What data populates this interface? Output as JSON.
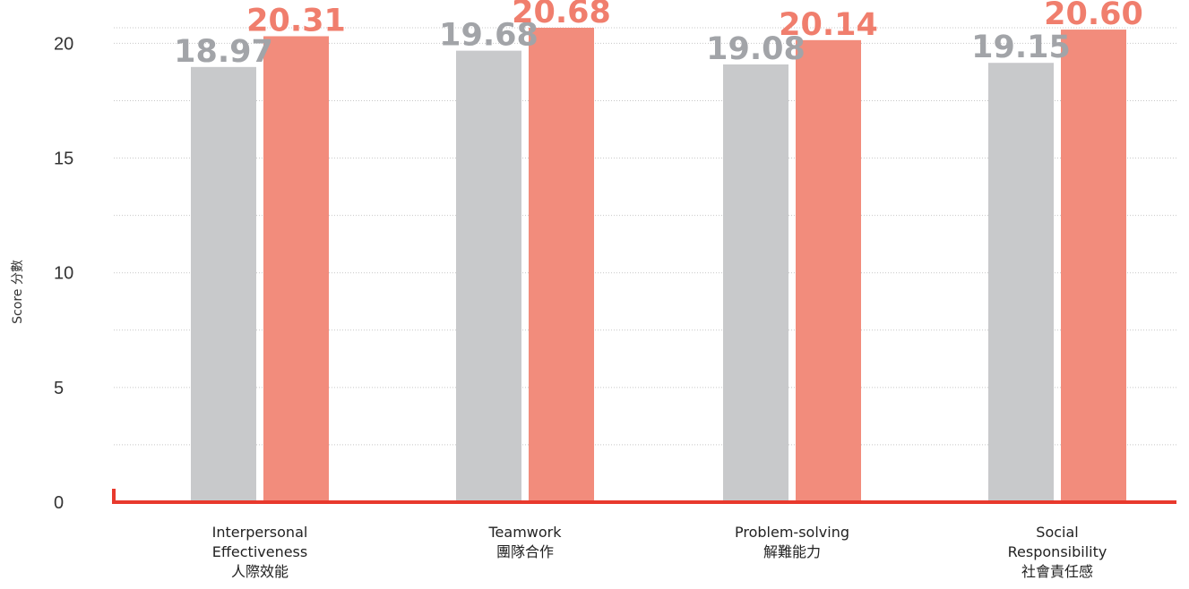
{
  "chart_data": {
    "type": "bar",
    "ylabel": "Score 分數",
    "ylim": [
      0,
      20.68
    ],
    "yticks": [
      0,
      5,
      10,
      15,
      20
    ],
    "grid": true,
    "categories": [
      [
        "Interpersonal",
        "Effectiveness",
        "人際效能"
      ],
      [
        "Teamwork",
        "團隊合作"
      ],
      [
        "Problem-solving",
        "解難能力"
      ],
      [
        "Social",
        "Responsibility",
        "社會責任感"
      ]
    ],
    "series": [
      {
        "values": [
          18.97,
          19.68,
          19.08,
          19.15
        ],
        "labels": [
          "18.97",
          "19.68",
          "19.08",
          "19.15"
        ],
        "color": "#c8c9cb",
        "label_color": "#a2a4a8"
      },
      {
        "values": [
          20.31,
          20.68,
          20.14,
          20.6
        ],
        "labels": [
          "20.31",
          "20.68",
          "20.14",
          "20.60"
        ],
        "color": "#f28c7c",
        "label_color": "#f07e6d"
      }
    ],
    "axis_color": "#e8392d"
  }
}
